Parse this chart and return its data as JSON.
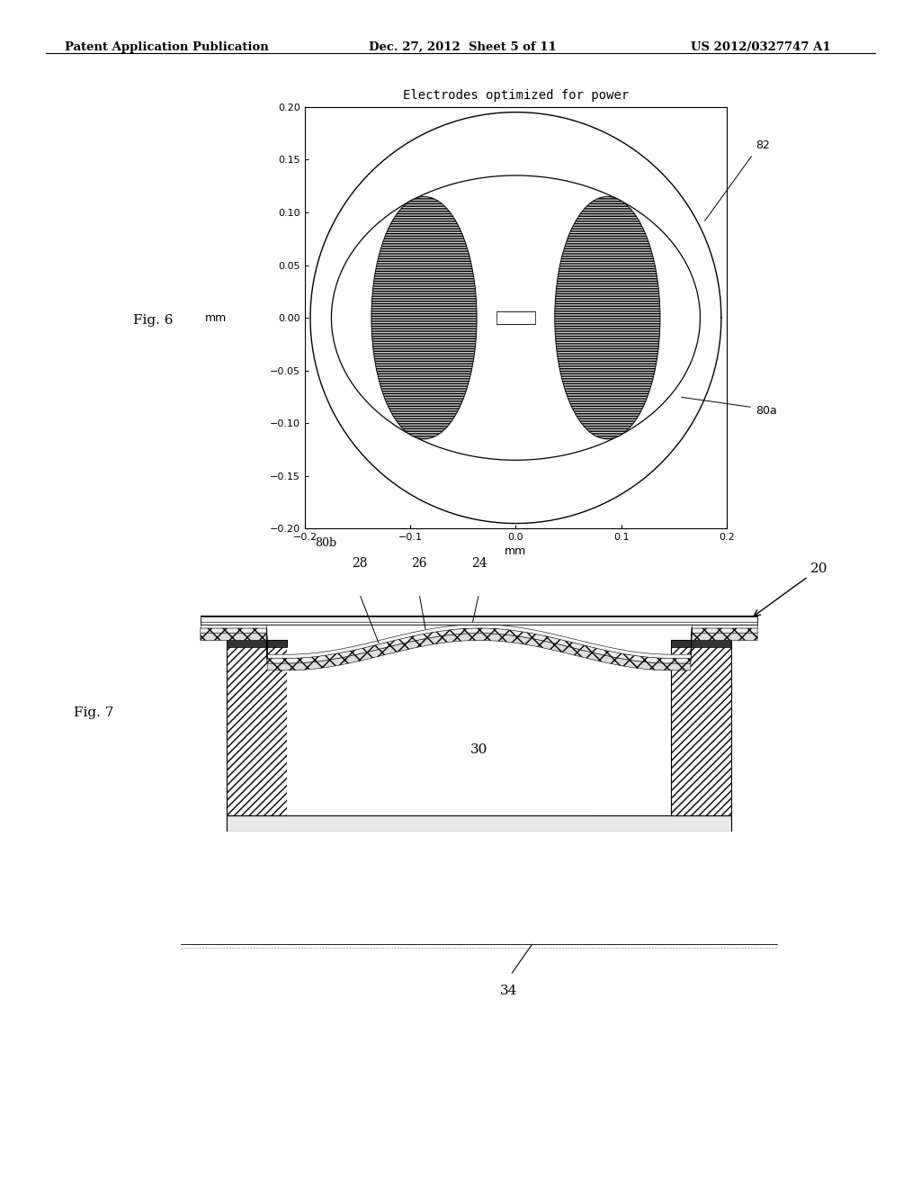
{
  "fig_width": 10.24,
  "fig_height": 13.2,
  "bg_color": "#ffffff",
  "header_left": "Patent Application Publication",
  "header_center": "Dec. 27, 2012  Sheet 5 of 11",
  "header_right": "US 2012/0327747 A1",
  "fig6_title": "Electrodes optimized for power",
  "fig6_label": "Fig. 6",
  "fig6_xlabel": "mm",
  "fig6_ylabel": "mm",
  "fig6_xlim": [
    -0.2,
    0.2
  ],
  "fig6_ylim": [
    -0.2,
    0.2
  ],
  "fig6_xticks": [
    -0.2,
    -0.1,
    0,
    0.1,
    0.2
  ],
  "fig6_yticks": [
    -0.2,
    -0.15,
    -0.1,
    -0.05,
    0,
    0.05,
    0.1,
    0.15,
    0.2
  ],
  "fig7_label": "Fig. 7",
  "label_82": "82",
  "label_80a": "80a",
  "label_80b": "80b",
  "label_20": "20",
  "label_24": "24",
  "label_26": "26",
  "label_28": "28",
  "label_30": "30",
  "label_34": "34"
}
